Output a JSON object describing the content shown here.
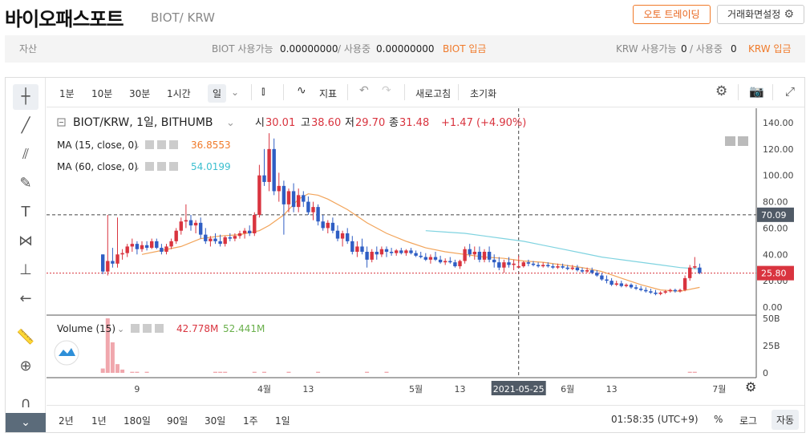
{
  "header": {
    "coin_name": "바이오패스포트",
    "pair": "BIOT/ KRW",
    "auto_trading": "오토 트레이딩",
    "screen_settings": "거래화면설정"
  },
  "assets": {
    "label": "자산",
    "biot_avail_label": "BIOT 사용가능",
    "biot_avail": "0.00000000",
    "biot_inuse_label": "/ 사용중",
    "biot_inuse": "0.00000000",
    "biot_deposit": "BIOT 입금",
    "krw_avail_label": "KRW 사용가능",
    "krw_avail": "0",
    "krw_inuse_label": "/ 사용중",
    "krw_inuse": "0",
    "krw_deposit": "KRW 입금"
  },
  "toolbar": {
    "intervals": [
      "1분",
      "10분",
      "30분",
      "1시간",
      "일"
    ],
    "indicator": "지표",
    "refresh": "새로고침",
    "reset": "초기화"
  },
  "legend": {
    "symbol": "BIOT/KRW, 1일, BITHUMB",
    "open_label": "시",
    "open": "30.01",
    "high_label": "고",
    "high": "38.60",
    "low_label": "저",
    "low": "29.70",
    "close_label": "종",
    "close": "31.48",
    "change": "+1.47 (+4.90%)",
    "ma15_label": "MA (15, close, 0)",
    "ma15_value": "36.8553",
    "ma60_label": "MA (60, close, 0)",
    "ma60_value": "54.0199",
    "volume_label": "Volume (15)",
    "volume_a": "42.778M",
    "volume_b": "52.441M"
  },
  "bottombar": {
    "ranges": [
      "2년",
      "1년",
      "180일",
      "90일",
      "30일",
      "1주",
      "1일"
    ],
    "time": "01:58:35 (UTC+9)",
    "percent": "%",
    "log": "로그",
    "auto": "자동"
  },
  "chart_data": {
    "type": "candlestick",
    "y_ticks": [
      "140.00",
      "120.00",
      "100.00",
      "80.00",
      "60.00",
      "40.00",
      "20.00",
      "0.00"
    ],
    "ylim": [
      0,
      140
    ],
    "vol_ticks": [
      "50B",
      "25B",
      "0"
    ],
    "vol_lim": [
      0,
      50
    ],
    "x_ticks": [
      "9",
      "4월",
      "13",
      "5월",
      "13",
      "6월",
      "13",
      "7월"
    ],
    "x_tick_days": [
      9,
      35,
      44,
      66,
      75,
      97,
      106,
      128
    ],
    "crosshair_price": "70.09",
    "crosshair_date": "2021-05-25",
    "crosshair_day": 87,
    "last_price": "25.80",
    "colors": {
      "up": "#d9343f",
      "down": "#2f5ec4",
      "ma15": "#f2a45a",
      "ma60": "#7fd3e0",
      "vol": "#f0a7ad"
    },
    "candles": [
      [
        2,
        40,
        40,
        25,
        27
      ],
      [
        3,
        27,
        70,
        24,
        35
      ],
      [
        4,
        35,
        45,
        30,
        33
      ],
      [
        5,
        33,
        68,
        30,
        40
      ],
      [
        6,
        40,
        44,
        36,
        41
      ],
      [
        7,
        41,
        48,
        38,
        46
      ],
      [
        8,
        46,
        52,
        42,
        48
      ],
      [
        9,
        48,
        50,
        40,
        44
      ],
      [
        10,
        44,
        50,
        42,
        47
      ],
      [
        11,
        47,
        50,
        43,
        45
      ],
      [
        12,
        45,
        52,
        44,
        50
      ],
      [
        13,
        50,
        52,
        44,
        45
      ],
      [
        14,
        45,
        48,
        40,
        42
      ],
      [
        15,
        42,
        48,
        40,
        46
      ],
      [
        16,
        46,
        52,
        44,
        50
      ],
      [
        17,
        50,
        60,
        48,
        58
      ],
      [
        18,
        58,
        68,
        55,
        65
      ],
      [
        19,
        65,
        78,
        60,
        66
      ],
      [
        20,
        66,
        70,
        58,
        62
      ],
      [
        21,
        62,
        66,
        56,
        64
      ],
      [
        22,
        64,
        68,
        52,
        55
      ],
      [
        23,
        55,
        60,
        48,
        50
      ],
      [
        24,
        50,
        54,
        46,
        52
      ],
      [
        25,
        52,
        56,
        48,
        50
      ],
      [
        26,
        50,
        55,
        46,
        48
      ],
      [
        27,
        48,
        54,
        46,
        53
      ],
      [
        28,
        53,
        56,
        50,
        52
      ],
      [
        29,
        52,
        56,
        50,
        54
      ],
      [
        30,
        54,
        58,
        52,
        56
      ],
      [
        31,
        56,
        60,
        52,
        58
      ],
      [
        32,
        58,
        62,
        54,
        56
      ],
      [
        33,
        56,
        72,
        54,
        70
      ],
      [
        34,
        70,
        108,
        68,
        100
      ],
      [
        35,
        100,
        120,
        92,
        95
      ],
      [
        36,
        95,
        132,
        88,
        120
      ],
      [
        37,
        120,
        128,
        85,
        88
      ],
      [
        38,
        88,
        102,
        80,
        92
      ],
      [
        39,
        92,
        96,
        55,
        78
      ],
      [
        40,
        78,
        90,
        72,
        88
      ],
      [
        41,
        88,
        94,
        72,
        76
      ],
      [
        42,
        76,
        90,
        72,
        85
      ],
      [
        43,
        85,
        88,
        76,
        80
      ],
      [
        44,
        80,
        84,
        70,
        72
      ],
      [
        45,
        72,
        80,
        66,
        76
      ],
      [
        46,
        76,
        78,
        62,
        65
      ],
      [
        47,
        65,
        70,
        58,
        60
      ],
      [
        48,
        60,
        66,
        56,
        64
      ],
      [
        49,
        64,
        68,
        56,
        58
      ],
      [
        50,
        58,
        62,
        50,
        52
      ],
      [
        51,
        52,
        58,
        46,
        56
      ],
      [
        52,
        56,
        60,
        48,
        50
      ],
      [
        53,
        50,
        54,
        40,
        42
      ],
      [
        54,
        42,
        50,
        38,
        46
      ],
      [
        55,
        46,
        52,
        40,
        42
      ],
      [
        56,
        42,
        46,
        30,
        36
      ],
      [
        57,
        36,
        44,
        34,
        42
      ],
      [
        58,
        42,
        46,
        36,
        40
      ],
      [
        59,
        40,
        46,
        38,
        44
      ],
      [
        60,
        44,
        46,
        38,
        42
      ],
      [
        61,
        42,
        45,
        39,
        41
      ],
      [
        62,
        41,
        44,
        39,
        43
      ],
      [
        63,
        43,
        45,
        40,
        41
      ],
      [
        64,
        41,
        44,
        39,
        43
      ],
      [
        65,
        43,
        45,
        40,
        41
      ],
      [
        66,
        41,
        43,
        38,
        39
      ],
      [
        67,
        39,
        42,
        37,
        38
      ],
      [
        68,
        38,
        41,
        35,
        36
      ],
      [
        69,
        36,
        40,
        33,
        38
      ],
      [
        70,
        38,
        42,
        35,
        36
      ],
      [
        71,
        36,
        39,
        33,
        34
      ],
      [
        72,
        34,
        37,
        32,
        35
      ],
      [
        73,
        35,
        38,
        33,
        34
      ],
      [
        74,
        34,
        36,
        30,
        31
      ],
      [
        75,
        31,
        36,
        29,
        35
      ],
      [
        76,
        35,
        46,
        33,
        44
      ],
      [
        77,
        44,
        48,
        38,
        40
      ],
      [
        78,
        40,
        46,
        36,
        42
      ],
      [
        79,
        42,
        46,
        34,
        36
      ],
      [
        80,
        36,
        44,
        34,
        42
      ],
      [
        81,
        42,
        46,
        34,
        36
      ],
      [
        82,
        36,
        40,
        30,
        34
      ],
      [
        83,
        34,
        38,
        28,
        30
      ],
      [
        84,
        30,
        36,
        26,
        34
      ],
      [
        85,
        34,
        38,
        30,
        32
      ],
      [
        86,
        32,
        36,
        28,
        33
      ],
      [
        87,
        30,
        39,
        30,
        31
      ],
      [
        88,
        31,
        35,
        30,
        34
      ],
      [
        89,
        34,
        36,
        31,
        33
      ],
      [
        90,
        33,
        35,
        31,
        32
      ],
      [
        91,
        32,
        34,
        30,
        31
      ],
      [
        92,
        31,
        34,
        30,
        32
      ],
      [
        93,
        32,
        34,
        30,
        31
      ],
      [
        94,
        31,
        33,
        29,
        30
      ],
      [
        95,
        30,
        33,
        29,
        31
      ],
      [
        96,
        31,
        33,
        29,
        30
      ],
      [
        97,
        30,
        32,
        28,
        29
      ],
      [
        98,
        29,
        32,
        28,
        30
      ],
      [
        99,
        30,
        32,
        27,
        28
      ],
      [
        100,
        28,
        30,
        26,
        27
      ],
      [
        101,
        27,
        30,
        26,
        28
      ],
      [
        102,
        28,
        30,
        25,
        26
      ],
      [
        103,
        26,
        28,
        23,
        24
      ],
      [
        104,
        24,
        26,
        20,
        21
      ],
      [
        105,
        21,
        24,
        18,
        20
      ],
      [
        106,
        20,
        22,
        16,
        17
      ],
      [
        107,
        17,
        20,
        16,
        18
      ],
      [
        108,
        18,
        20,
        15,
        16
      ],
      [
        109,
        16,
        18,
        15,
        17
      ],
      [
        110,
        17,
        18,
        14,
        15
      ],
      [
        111,
        15,
        17,
        13,
        14
      ],
      [
        112,
        14,
        16,
        12,
        13
      ],
      [
        113,
        13,
        15,
        11,
        12
      ],
      [
        114,
        12,
        14,
        10,
        11
      ],
      [
        115,
        11,
        13,
        9,
        10
      ],
      [
        116,
        10,
        12,
        9,
        11
      ],
      [
        117,
        11,
        13,
        10,
        12
      ],
      [
        118,
        12,
        14,
        11,
        13
      ],
      [
        119,
        13,
        14,
        11,
        12
      ],
      [
        120,
        12,
        14,
        11,
        13
      ],
      [
        121,
        13,
        24,
        12,
        22
      ],
      [
        122,
        22,
        32,
        20,
        30
      ],
      [
        123,
        30,
        38,
        29,
        31
      ],
      [
        124,
        30,
        33,
        25,
        26
      ]
    ],
    "ma15": [
      [
        10,
        40
      ],
      [
        14,
        43
      ],
      [
        18,
        46
      ],
      [
        22,
        52
      ],
      [
        26,
        54
      ],
      [
        30,
        55
      ],
      [
        34,
        58
      ],
      [
        36,
        62
      ],
      [
        39,
        70
      ],
      [
        42,
        82
      ],
      [
        44,
        86
      ],
      [
        46,
        85
      ],
      [
        48,
        82
      ],
      [
        52,
        74
      ],
      [
        56,
        64
      ],
      [
        60,
        56
      ],
      [
        64,
        50
      ],
      [
        68,
        45
      ],
      [
        72,
        42
      ],
      [
        76,
        40
      ],
      [
        80,
        38
      ],
      [
        84,
        37
      ],
      [
        88,
        35
      ],
      [
        92,
        34
      ],
      [
        96,
        32
      ],
      [
        100,
        30
      ],
      [
        104,
        27
      ],
      [
        108,
        22
      ],
      [
        112,
        17
      ],
      [
        116,
        13
      ],
      [
        120,
        12
      ],
      [
        124,
        15
      ]
    ],
    "ma60": [
      [
        68,
        58
      ],
      [
        72,
        57
      ],
      [
        76,
        56
      ],
      [
        80,
        54
      ],
      [
        84,
        52
      ],
      [
        88,
        50
      ],
      [
        92,
        47
      ],
      [
        96,
        44
      ],
      [
        100,
        41
      ],
      [
        104,
        38
      ],
      [
        108,
        36
      ],
      [
        112,
        34
      ],
      [
        116,
        32
      ],
      [
        120,
        30
      ],
      [
        124,
        29
      ]
    ],
    "volumes": [
      [
        2,
        4
      ],
      [
        3,
        50
      ],
      [
        4,
        28
      ],
      [
        5,
        8
      ],
      [
        6,
        3
      ],
      [
        8,
        1
      ],
      [
        9,
        1
      ],
      [
        11,
        1
      ],
      [
        25,
        1
      ],
      [
        26,
        1
      ],
      [
        27,
        1
      ],
      [
        33,
        1
      ],
      [
        35,
        1
      ],
      [
        40,
        1
      ],
      [
        46,
        1
      ],
      [
        56,
        1
      ],
      [
        60,
        1
      ],
      [
        122,
        1
      ],
      [
        123,
        1
      ]
    ]
  }
}
